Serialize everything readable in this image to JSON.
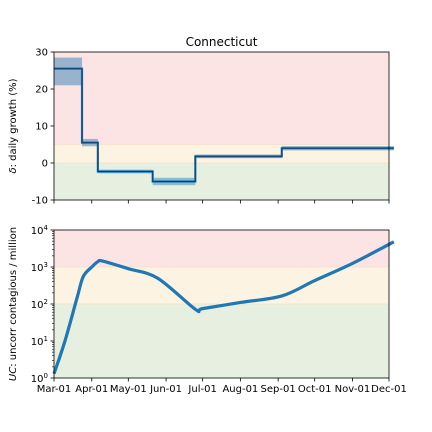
{
  "chart_data": [
    {
      "type": "line",
      "title": "Connecticut",
      "ylabel": "δ: daily growth (%)",
      "ylabel_italic_part": "δ",
      "ylabel_rest": ": daily growth (%)",
      "ylim": [
        -10,
        30
      ],
      "yticks": [
        -10,
        0,
        10,
        20,
        30
      ],
      "xlim_days": [
        0,
        275
      ],
      "bands": [
        {
          "from": -10,
          "to": 0,
          "color": "#e7f0e0"
        },
        {
          "from": 0,
          "to": 5,
          "color": "#fdf3e2"
        },
        {
          "from": 5,
          "to": 30,
          "color": "#fde4e4"
        }
      ],
      "series": [
        {
          "x": [
            "2020-03-01",
            "2020-03-24",
            "2020-04-06",
            "2020-05-21",
            "2020-06-25",
            "2020-09-04",
            "2020-12-05"
          ],
          "y": [
            25.5,
            5.5,
            -2.3,
            -5.0,
            1.8,
            4.0,
            4.0
          ],
          "band_low": [
            21.0,
            4.5,
            -2.8,
            -6.0,
            1.3,
            3.4,
            3.4
          ],
          "band_high": [
            28.5,
            6.5,
            -1.8,
            -4.0,
            2.3,
            4.6,
            4.6
          ]
        }
      ]
    },
    {
      "type": "line",
      "title": "",
      "ylabel": "UC: uncorr contagious / million",
      "ylabel_italic_part": "UC",
      "ylabel_rest": ": uncorr contagious / million",
      "yscale": "log",
      "ylim": [
        1,
        10000
      ],
      "yticks": [
        {
          "value": 1,
          "base": "10",
          "exp": "0"
        },
        {
          "value": 10,
          "base": "10",
          "exp": "1"
        },
        {
          "value": 100,
          "base": "10",
          "exp": "2"
        },
        {
          "value": 1000,
          "base": "10",
          "exp": "3"
        },
        {
          "value": 10000,
          "base": "10",
          "exp": "4"
        }
      ],
      "bands": [
        {
          "from": 1,
          "to": 100,
          "color": "#e7f0e0"
        },
        {
          "from": 100,
          "to": 1000,
          "color": "#fdf3e2"
        },
        {
          "from": 1000,
          "to": 10000,
          "color": "#fde4e4"
        }
      ],
      "x": [
        "2020-03-01",
        "2020-03-10",
        "2020-03-20",
        "2020-03-25",
        "2020-04-01",
        "2020-04-06",
        "2020-04-10",
        "2020-05-01",
        "2020-05-25",
        "2020-06-25",
        "2020-07-01",
        "2020-08-01",
        "2020-09-04",
        "2020-10-01",
        "2020-11-01",
        "2020-12-05"
      ],
      "values": [
        1.3,
        10,
        150,
        550,
        1000,
        1400,
        1450,
        900,
        500,
        72,
        75,
        110,
        165,
        430,
        1250,
        4800
      ]
    }
  ],
  "x_axis": {
    "ticks": [
      "Mar-01",
      "Apr-01",
      "May-01",
      "Jun-01",
      "Jul-01",
      "Aug-01",
      "Sep-01",
      "Oct-01",
      "Nov-01",
      "Dec-01"
    ],
    "tick_dates": [
      "2020-03-01",
      "2020-04-01",
      "2020-05-01",
      "2020-06-01",
      "2020-07-01",
      "2020-08-01",
      "2020-09-01",
      "2020-10-01",
      "2020-11-01",
      "2020-12-01"
    ]
  },
  "colors": {
    "line": "#1f77b4",
    "line_dark": "#0b3d66",
    "band_fill": "#1f77b4"
  }
}
